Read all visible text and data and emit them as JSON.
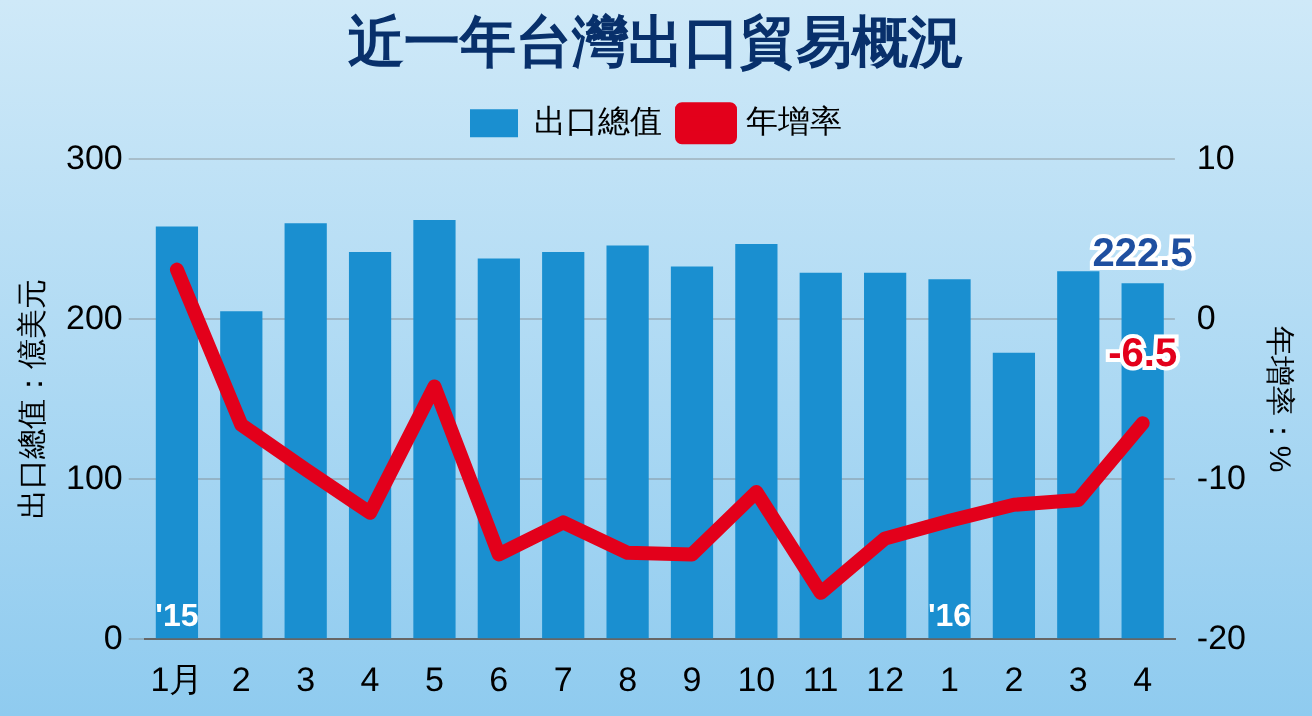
{
  "chart_data": {
    "type": "bar",
    "title": "近一年台灣出口貿易概況",
    "ylabel": "出口總值：億美元",
    "y2label": "年增率：%",
    "categories": [
      "1月",
      "2",
      "3",
      "4",
      "5",
      "6",
      "7",
      "8",
      "9",
      "10",
      "11",
      "12",
      "1",
      "2",
      "3",
      "4"
    ],
    "series": [
      {
        "name": "出口總值",
        "color": "#1a8fd0",
        "values": [
          258,
          205,
          260,
          242,
          262,
          238,
          242,
          246,
          233,
          247,
          229,
          229,
          225,
          179,
          230,
          222.5
        ],
        "value_labels": [
          null,
          null,
          null,
          null,
          null,
          null,
          null,
          null,
          null,
          null,
          null,
          null,
          null,
          null,
          null,
          "222.5"
        ]
      },
      {
        "name": "年增率",
        "type": "line",
        "axis": "y2",
        "color": "#e3001b",
        "values": [
          3.1,
          -6.6,
          -9.4,
          -12.1,
          -4.2,
          -14.7,
          -12.7,
          -14.6,
          -14.7,
          -10.8,
          -17.1,
          -13.7,
          -12.6,
          -11.6,
          -11.3,
          -6.5
        ],
        "value_labels": [
          null,
          null,
          null,
          null,
          null,
          null,
          null,
          null,
          null,
          null,
          null,
          null,
          null,
          null,
          null,
          "-6.5"
        ]
      }
    ],
    "ylim": [
      0,
      300
    ],
    "yticks": [
      0,
      100,
      200,
      300
    ],
    "y2lim": [
      -20,
      10
    ],
    "y2ticks": [
      -20,
      -10,
      0,
      10
    ],
    "annotations": [
      "'15",
      "'16"
    ],
    "legend": "top",
    "grid": "y",
    "marker": "none",
    "line_style": "solid"
  }
}
